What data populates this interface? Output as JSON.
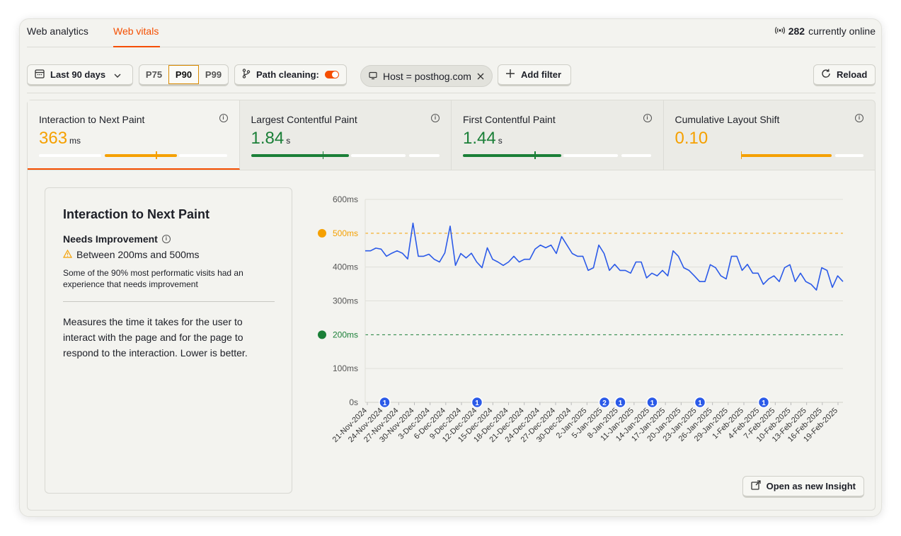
{
  "tabs": [
    {
      "label": "Web analytics",
      "active": false
    },
    {
      "label": "Web vitals",
      "active": true
    }
  ],
  "online": {
    "count": "282",
    "text": "currently online"
  },
  "toolbar": {
    "date_range": "Last 90 days",
    "percentiles": [
      "P75",
      "P90",
      "P99"
    ],
    "selected_percentile": "P90",
    "path_cleaning_label": "Path cleaning:",
    "path_cleaning_on": true,
    "filter_pill": "Host = posthog.com",
    "add_filter": "Add filter",
    "reload": "Reload"
  },
  "metrics": [
    {
      "label": "Interaction to Next Paint",
      "value": "363",
      "unit": "ms",
      "color": "#f5a000",
      "active": true,
      "progress": 0.63,
      "marker": 0.62
    },
    {
      "label": "Largest Contentful Paint",
      "value": "1.84",
      "unit": "s",
      "color": "#1a7f37",
      "active": false,
      "progress": 0.52,
      "marker": 0.38
    },
    {
      "label": "First Contentful Paint",
      "value": "1.44",
      "unit": "s",
      "color": "#1a7f37",
      "active": false,
      "progress": 0.52,
      "marker": 0.38
    },
    {
      "label": "Cumulative Layout Shift",
      "value": "0.10",
      "unit": "",
      "color": "#f5a000",
      "active": false,
      "progress": 0.83,
      "marker": 0.35
    }
  ],
  "description": {
    "title": "Interaction to Next Paint",
    "status": "Needs Improvement",
    "range": "Between 200ms and 500ms",
    "note": "Some of the 90% most performatic visits had an experience that needs improvement",
    "long": "Measures the time it takes for the user to interact with the page and for the page to respond to the interaction. Lower is better."
  },
  "open_insight": "Open as new Insight",
  "chart_data": {
    "type": "line",
    "ylabels": [
      "600ms",
      "500ms",
      "400ms",
      "300ms",
      "200ms",
      "100ms",
      "0s"
    ],
    "ylim": [
      0,
      600
    ],
    "xlabels": [
      "21-Nov-2024",
      "24-Nov-2024",
      "27-Nov-2024",
      "30-Nov-2024",
      "3-Dec-2024",
      "6-Dec-2024",
      "9-Dec-2024",
      "12-Dec-2024",
      "15-Dec-2024",
      "18-Dec-2024",
      "21-Dec-2024",
      "24-Dec-2024",
      "27-Dec-2024",
      "30-Dec-2024",
      "2-Jan-2025",
      "5-Jan-2025",
      "8-Jan-2025",
      "11-Jan-2025",
      "14-Jan-2025",
      "17-Jan-2025",
      "20-Jan-2025",
      "23-Jan-2025",
      "26-Jan-2025",
      "29-Jan-2025",
      "1-Feb-2025",
      "4-Feb-2025",
      "7-Feb-2025",
      "10-Feb-2025",
      "13-Feb-2025",
      "16-Feb-2025",
      "19-Feb-2025"
    ],
    "series": [
      {
        "color": "#2b5ae8",
        "values": [
          448,
          448,
          456,
          453,
          432,
          441,
          448,
          441,
          424,
          530,
          432,
          432,
          438,
          423,
          415,
          442,
          521,
          405,
          440,
          427,
          441,
          415,
          398,
          457,
          423,
          415,
          405,
          415,
          432,
          415,
          423,
          423,
          453,
          465,
          457,
          465,
          440,
          490,
          465,
          440,
          432,
          432,
          390,
          398,
          465,
          440,
          390,
          408,
          390,
          390,
          382,
          415,
          415,
          368,
          382,
          374,
          390,
          374,
          448,
          432,
          398,
          390,
          374,
          357,
          357,
          407,
          398,
          374,
          365,
          432,
          432,
          390,
          408,
          382,
          382,
          349,
          365,
          374,
          357,
          398,
          407,
          357,
          382,
          357,
          349,
          332,
          398,
          390,
          340,
          374,
          357
        ]
      }
    ],
    "thresholds": [
      {
        "label": "500ms",
        "value": 500,
        "color": "#f5a000"
      },
      {
        "label": "200ms",
        "value": 200,
        "color": "#1a7f37"
      }
    ],
    "annotations": [
      {
        "index": 1,
        "label": "1"
      },
      {
        "index": 30,
        "label": "1"
      },
      {
        "index": 70,
        "label": "2"
      },
      {
        "index": 75,
        "label": "1"
      },
      {
        "index": 85,
        "label": "1"
      },
      {
        "index": 100,
        "label": "1"
      },
      {
        "index": 120,
        "label": "1"
      }
    ],
    "annotation_index_max": 150,
    "grid": true
  }
}
